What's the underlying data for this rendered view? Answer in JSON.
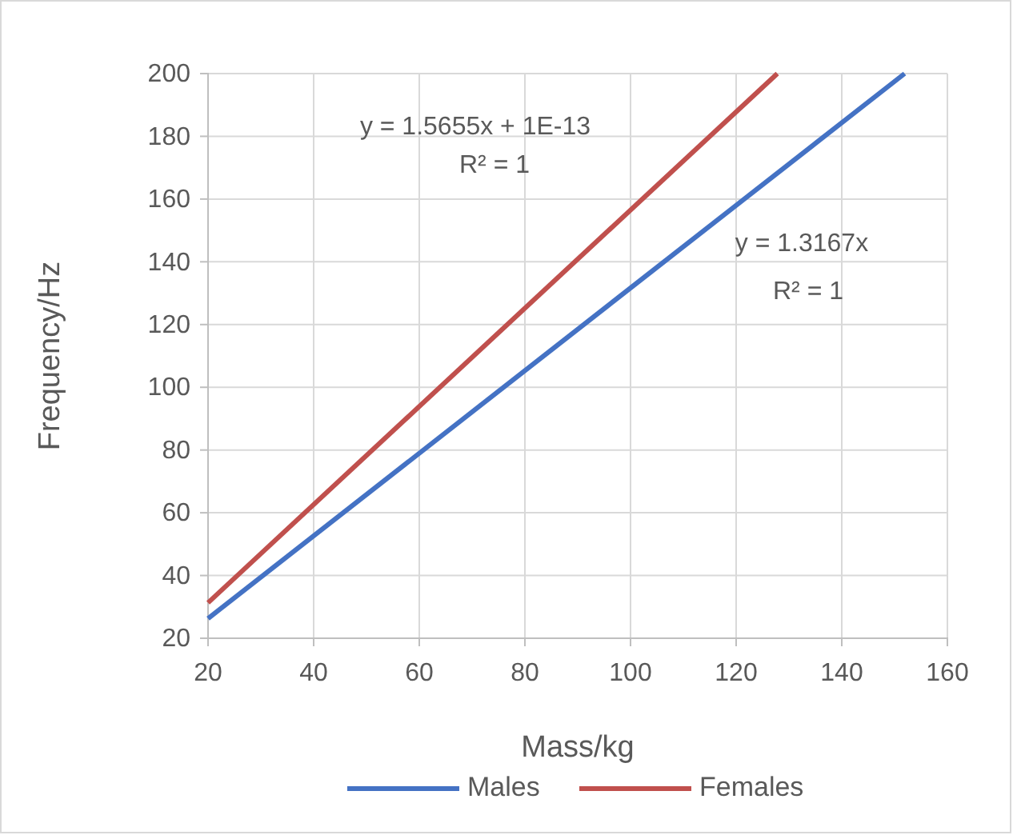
{
  "chart_data": {
    "type": "line",
    "xlabel": "Mass/kg",
    "ylabel": "Frequency/Hz",
    "xlim": [
      20,
      160
    ],
    "xticks": [
      20,
      40,
      60,
      80,
      100,
      120,
      140,
      160
    ],
    "ylim": [
      20,
      200
    ],
    "yticks": [
      20,
      40,
      60,
      80,
      100,
      120,
      140,
      160,
      180,
      200
    ],
    "grid": true,
    "legend": "bottom",
    "marker": "none",
    "line_style": "solid",
    "series": [
      {
        "name": "Males",
        "color": "#4472c4",
        "x": [
          20,
          151.9
        ],
        "values": [
          26.3,
          200
        ]
      },
      {
        "name": "Females",
        "color": "#c0504d",
        "x": [
          20,
          127.8
        ],
        "values": [
          31.3,
          200
        ]
      }
    ],
    "annotations": [
      "y = 1.5655x + 1E-13",
      "R² = 1",
      "y = 1.3167x",
      "R² = 1"
    ]
  }
}
